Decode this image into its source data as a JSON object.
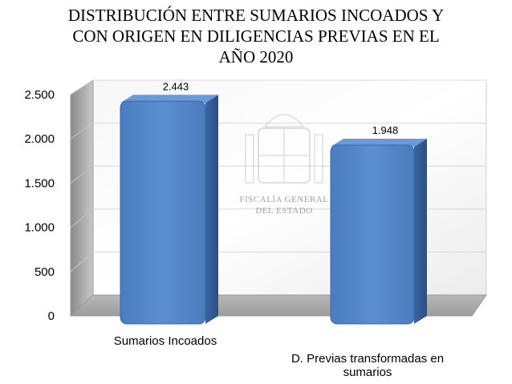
{
  "chart_data": {
    "type": "bar",
    "title_lines": [
      "DISTRIBUCIÓN ENTRE SUMARIOS INCOADOS Y",
      "CON ORIGEN EN DILIGENCIAS PREVIAS EN EL",
      "AÑO 2020"
    ],
    "categories": [
      "Sumarios Incoados",
      "D. Previas transformadas en sumarios"
    ],
    "category_label_lines": [
      [
        "Sumarios Incoados"
      ],
      [
        "D. Previas transformadas en",
        "sumarios"
      ]
    ],
    "values": [
      2443,
      1948
    ],
    "data_labels": [
      "2.443",
      "1.948"
    ],
    "ylim": [
      0,
      2500
    ],
    "yticks": [
      0,
      500,
      1000,
      1500,
      2000,
      2500
    ],
    "ytick_labels": [
      "0",
      "500",
      "1.000",
      "1.500",
      "2.000",
      "2.500"
    ],
    "grid": true,
    "legend": "none",
    "bar_color": "#4f81bd",
    "watermark": [
      "FISCALÍA GENERAL",
      "DEL ESTADO"
    ]
  }
}
